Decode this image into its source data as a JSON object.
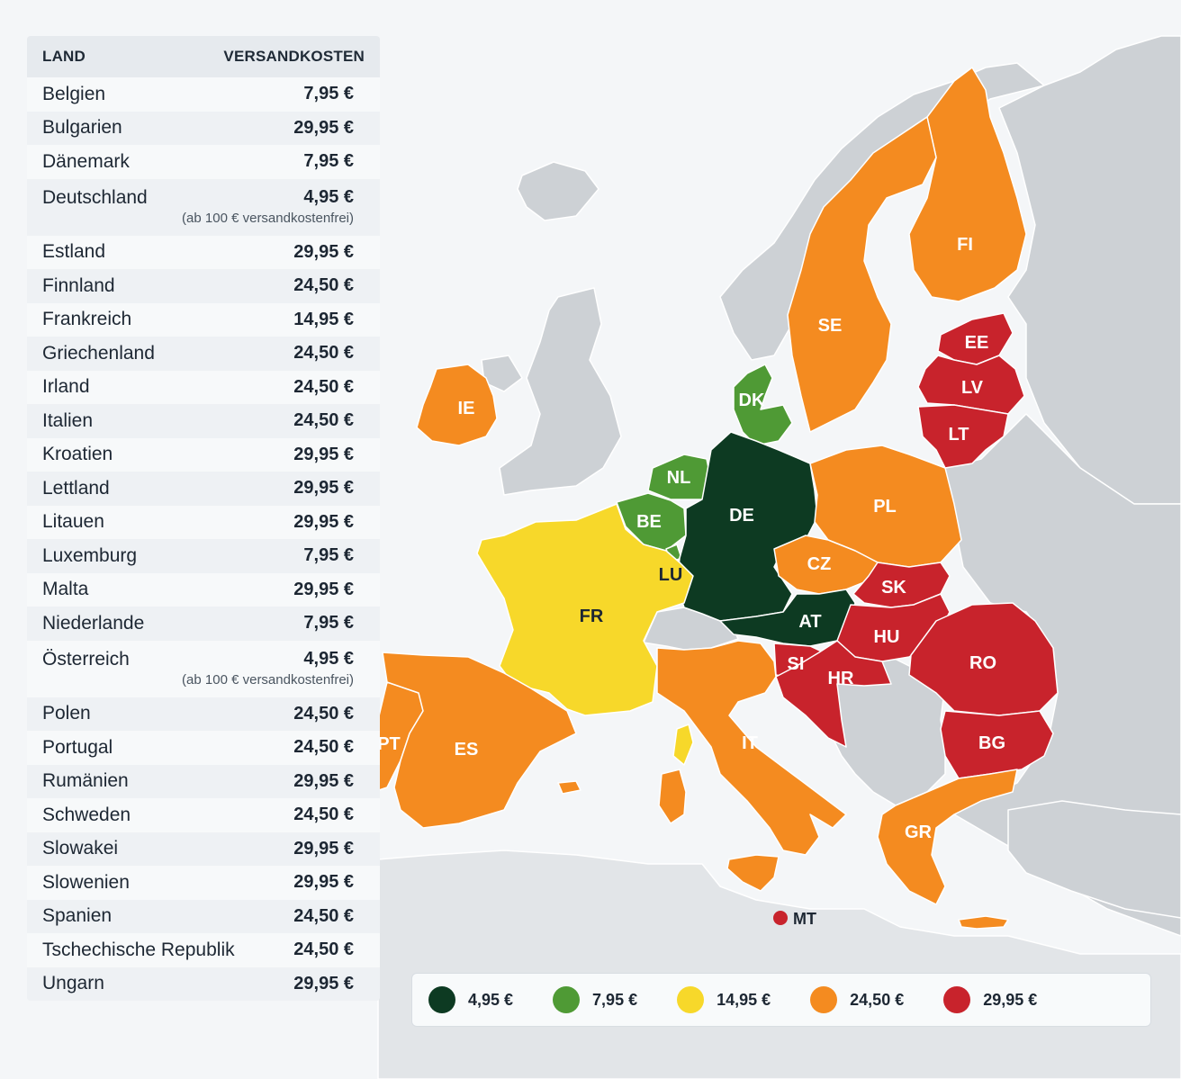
{
  "table": {
    "header_country": "LAND",
    "header_cost": "VERSANDKOSTEN",
    "rows": [
      {
        "country": "Belgien",
        "cost": "7,95 €"
      },
      {
        "country": "Bulgarien",
        "cost": "29,95 €"
      },
      {
        "country": "Dänemark",
        "cost": "7,95 €"
      },
      {
        "country": "Deutschland",
        "cost": "4,95 €",
        "note": "(ab 100 € versandkostenfrei)"
      },
      {
        "country": "Estland",
        "cost": "29,95 €"
      },
      {
        "country": "Finnland",
        "cost": "24,50 €"
      },
      {
        "country": "Frankreich",
        "cost": "14,95 €"
      },
      {
        "country": "Griechenland",
        "cost": "24,50 €"
      },
      {
        "country": "Irland",
        "cost": "24,50 €"
      },
      {
        "country": "Italien",
        "cost": "24,50 €"
      },
      {
        "country": "Kroatien",
        "cost": "29,95 €"
      },
      {
        "country": "Lettland",
        "cost": "29,95 €"
      },
      {
        "country": "Litauen",
        "cost": "29,95 €"
      },
      {
        "country": "Luxemburg",
        "cost": "7,95 €"
      },
      {
        "country": "Malta",
        "cost": "29,95 €"
      },
      {
        "country": "Niederlande",
        "cost": "7,95 €"
      },
      {
        "country": "Österreich",
        "cost": "4,95 €",
        "note": "(ab 100 € versandkostenfrei)"
      },
      {
        "country": "Polen",
        "cost": "24,50 €"
      },
      {
        "country": "Portugal",
        "cost": "24,50 €"
      },
      {
        "country": "Rumänien",
        "cost": "29,95 €"
      },
      {
        "country": "Schweden",
        "cost": "24,50 €"
      },
      {
        "country": "Slowakei",
        "cost": "29,95 €"
      },
      {
        "country": "Slowenien",
        "cost": "29,95 €"
      },
      {
        "country": "Spanien",
        "cost": "24,50 €"
      },
      {
        "country": "Tschechische Republik",
        "cost": "24,50 €"
      },
      {
        "country": "Ungarn",
        "cost": "29,95 €"
      }
    ]
  },
  "map": {
    "labels": {
      "FI": "FI",
      "SE": "SE",
      "EE": "EE",
      "LV": "LV",
      "LT": "LT",
      "DK": "DK",
      "IE": "IE",
      "NL": "NL",
      "BE": "BE",
      "LU": "LU",
      "DE": "DE",
      "PL": "PL",
      "CZ": "CZ",
      "SK": "SK",
      "AT": "AT",
      "HU": "HU",
      "RO": "RO",
      "SI": "SI",
      "HR": "HR",
      "BG": "BG",
      "FR": "FR",
      "IT": "IT",
      "PT": "PT",
      "ES": "ES",
      "GR": "GR",
      "MT": "MT"
    },
    "colors": {
      "tier_495": "#0d3a22",
      "tier_795": "#4f9a35",
      "tier_1495": "#f7d82a",
      "tier_2450": "#f48b20",
      "tier_2995": "#c8232c",
      "non_eu": "#cdd1d5",
      "sea": "#f4f6f8"
    }
  },
  "legend": [
    {
      "label": "4,95 €",
      "color": "#0d3a22"
    },
    {
      "label": "7,95 €",
      "color": "#4f9a35"
    },
    {
      "label": "14,95 €",
      "color": "#f7d82a"
    },
    {
      "label": "24,50 €",
      "color": "#f48b20"
    },
    {
      "label": "29,95 €",
      "color": "#c8232c"
    }
  ]
}
